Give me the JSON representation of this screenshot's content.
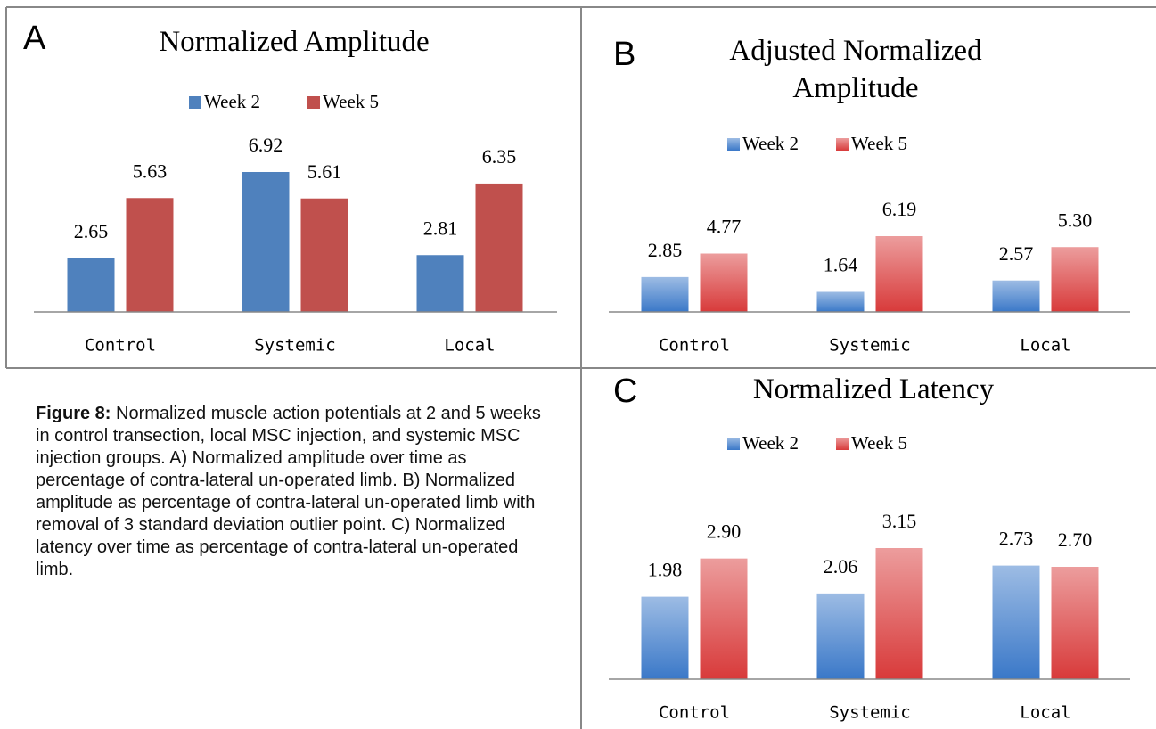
{
  "chart_data": [
    {
      "type": "bar",
      "panel": "A",
      "title": "Normalized Amplitude",
      "gradient": false,
      "categories": [
        "Control",
        "Systemic",
        "Local"
      ],
      "series": [
        {
          "name": "Week 2",
          "color": "#4f81bd",
          "values": [
            2.65,
            6.92,
            2.81
          ],
          "value_labels": [
            "2.65",
            "6.92",
            "2.81"
          ]
        },
        {
          "name": "Week 5",
          "color": "#c0504d",
          "values": [
            5.63,
            5.61,
            6.35
          ],
          "value_labels": [
            "5.63",
            "5.61",
            "6.35"
          ]
        }
      ]
    },
    {
      "type": "bar",
      "panel": "B",
      "title": "Adjusted Normalized Amplitude",
      "gradient": true,
      "categories": [
        "Control",
        "Systemic",
        "Local"
      ],
      "series": [
        {
          "name": "Week 2",
          "color": "#3a78c8",
          "values": [
            2.85,
            1.64,
            2.57
          ],
          "value_labels": [
            "2.85",
            "1.64",
            "2.57"
          ]
        },
        {
          "name": "Week 5",
          "color": "#d83a3a",
          "values": [
            4.77,
            6.19,
            5.3
          ],
          "value_labels": [
            "4.77",
            "6.19",
            "5.30"
          ]
        }
      ]
    },
    {
      "type": "bar",
      "panel": "C",
      "title": "Normalized Latency",
      "gradient": true,
      "categories": [
        "Control",
        "Systemic",
        "Local"
      ],
      "series": [
        {
          "name": "Week 2",
          "color": "#3a78c8",
          "values": [
            1.98,
            2.06,
            2.73
          ],
          "value_labels": [
            "1.98",
            "2.06",
            "2.73"
          ]
        },
        {
          "name": "Week 5",
          "color": "#d83a3a",
          "values": [
            2.9,
            3.15,
            2.7
          ],
          "value_labels": [
            "2.90",
            "3.15",
            "2.70"
          ]
        }
      ]
    }
  ],
  "caption": {
    "label": "Figure 8:",
    "text": "Normalized muscle action potentials at 2 and 5 weeks in control transection, local MSC injection, and systemic MSC injection groups.  A) Normalized amplitude over time as percentage of contra-lateral un-operated limb. B) Normalized amplitude as percentage of contra-lateral un-operated limb with removal of 3 standard deviation outlier point. C) Normalized latency over time as percentage of contra-lateral un-operated limb."
  }
}
